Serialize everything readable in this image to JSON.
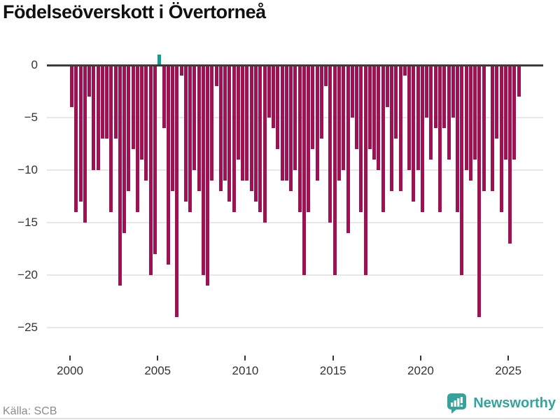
{
  "title": "Födelseöverskott i Övertorneå",
  "footer": {
    "source": "Källa: SCB",
    "brand": "Newsworthy"
  },
  "colors": {
    "bar_negative": "#9e1152",
    "bar_positive": "#0aa092",
    "brand_teal": "#35a39d",
    "axis_line": "#3c3c3c",
    "grid_line": "#e7e7e7",
    "tick_text": "#333333",
    "source_text": "#8c8c8c",
    "title_text": "#111111"
  },
  "chart_data": {
    "type": "bar",
    "title": "Födelseöverskott i Övertorneå",
    "xlabel": "",
    "ylabel": "",
    "frequency": "quarterly",
    "start_year": 2000,
    "start_quarter": 1,
    "end_year": 2025,
    "end_quarter": 3,
    "ylim": [
      -25,
      1
    ],
    "grid": "horizontal",
    "legend": "none",
    "y_tick_values": [
      0,
      -5,
      -10,
      -15,
      -20,
      -25
    ],
    "y_tick_labels": [
      "0",
      "−5",
      "−10",
      "−15",
      "−20",
      "−25"
    ],
    "x_tick_years": [
      2000,
      2005,
      2010,
      2015,
      2020,
      2025
    ],
    "x_tick_labels": [
      "2000",
      "2005",
      "2010",
      "2015",
      "2020",
      "2025"
    ],
    "values": [
      -4,
      -14,
      -13,
      -15,
      -3,
      -10,
      -10,
      -7,
      -7,
      -14,
      -7,
      -21,
      -16,
      -12,
      -8,
      -14,
      -9,
      -11,
      -20,
      -18,
      1,
      -6,
      -19,
      -12,
      -24,
      -1,
      -13,
      -14,
      -10,
      -12,
      -20,
      -21,
      -11,
      -2,
      -12,
      -11,
      -13,
      -14,
      -9,
      -11,
      -11,
      -12,
      -13,
      -14,
      -15,
      -5,
      -6,
      -8,
      -11,
      -11,
      -12,
      -10,
      -14,
      -20,
      -14,
      -8,
      -11,
      -7,
      -2,
      -15,
      -20,
      -11,
      -10,
      -16,
      -5,
      -8,
      -14,
      -20,
      -8,
      -9,
      -10,
      -14,
      -4,
      -12,
      -7,
      -12,
      -1,
      -10,
      -13,
      -10,
      -14,
      -5,
      -9,
      -6,
      -14,
      -6,
      -9,
      -5,
      -14,
      -20,
      -10,
      -11,
      -9,
      -24,
      -12,
      0,
      -12,
      -7,
      -14,
      -9,
      -17,
      -9,
      -3
    ]
  }
}
